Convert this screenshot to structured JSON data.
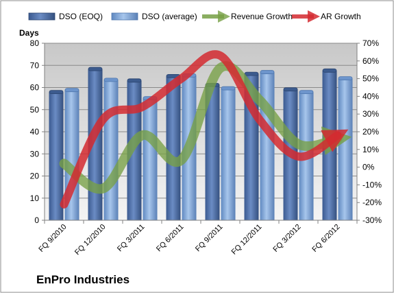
{
  "chart_data": {
    "type": "bar",
    "title": "",
    "company": "EnPro Industries",
    "categories": [
      "FQ 9/2010",
      "FQ 12/2010",
      "FQ 3/2011",
      "FQ 6/2011",
      "FQ 9/2011",
      "FQ 12/2011",
      "FQ 3/2012",
      "FQ 6/2012"
    ],
    "ylabel": "Days",
    "ylim": [
      0,
      80
    ],
    "yticks": [
      "0",
      "10",
      "20",
      "30",
      "40",
      "50",
      "60",
      "70",
      "80"
    ],
    "y2lim": [
      -30,
      70
    ],
    "y2ticks": [
      "-30%",
      "-20%",
      "-10%",
      "0%",
      "10%",
      "20%",
      "30%",
      "40%",
      "50%",
      "60%",
      "70%"
    ],
    "grid": true,
    "legend_position": "top",
    "series": [
      {
        "name": "DSO (EOQ)",
        "type": "bar",
        "axis": "left",
        "color": "#4f6fa8",
        "values": [
          57.8,
          68.2,
          63.0,
          65.0,
          61.0,
          66.0,
          59.0,
          67.5
        ]
      },
      {
        "name": "DSO (average)",
        "type": "bar",
        "axis": "left",
        "color": "#7aa3d8",
        "values": [
          58.7,
          63.3,
          55.0,
          65.3,
          59.5,
          66.8,
          57.8,
          64.0
        ]
      },
      {
        "name": "Revenue Growth",
        "type": "line",
        "axis": "right",
        "unit": "%",
        "color": "#77a045",
        "values": [
          2,
          -12,
          18,
          4,
          56,
          38,
          13,
          16
        ]
      },
      {
        "name": "AR Growth",
        "type": "line",
        "axis": "right",
        "unit": "%",
        "color": "#d42a30",
        "values": [
          -21,
          27,
          34,
          50,
          63,
          27,
          6,
          18
        ]
      }
    ]
  }
}
